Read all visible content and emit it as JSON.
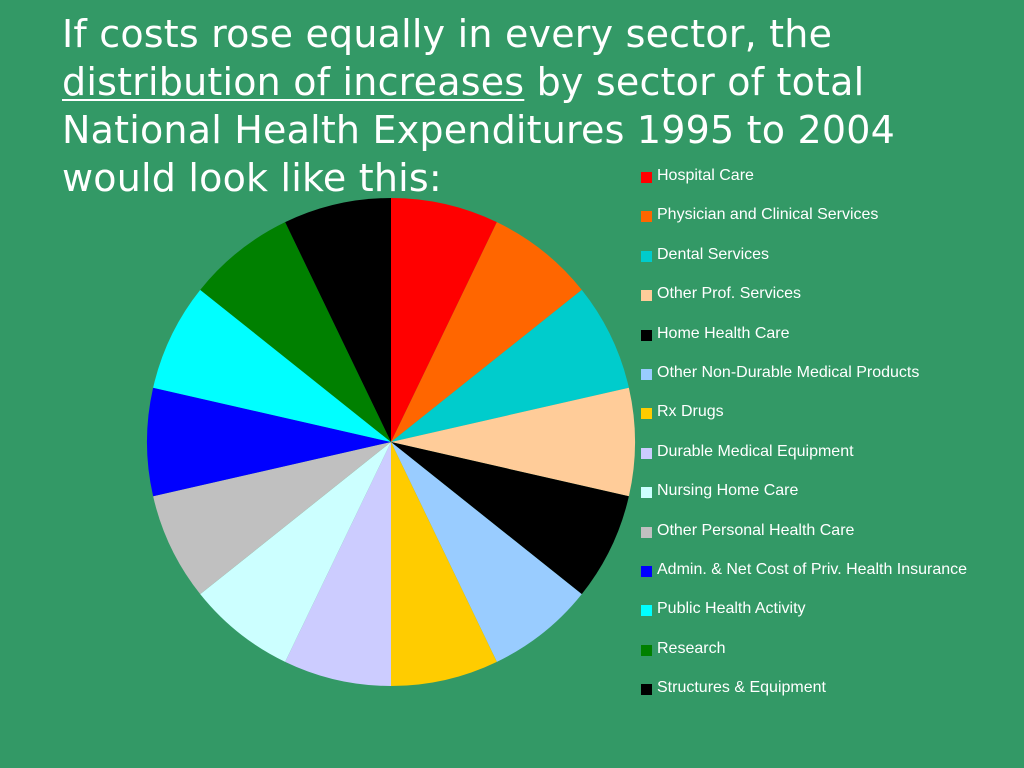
{
  "slide": {
    "title_part1": "If costs rose equally in every sector, the",
    "title_underlined": "distribution of increases",
    "title_part2": "by sector of total National Health Expenditures 1995 to 2004 would look like this:"
  },
  "chart_data": {
    "type": "pie",
    "title": "",
    "legend_position": "right",
    "start_angle_deg": 0,
    "direction": "clockwise",
    "categories": [
      "Hospital Care",
      "Physician and Clinical Services",
      "Dental Services",
      "Other Prof. Services",
      "Home Health Care",
      "Other Non-Durable Medical Products",
      "Rx Drugs",
      "Durable Medical Equipment",
      "Nursing Home Care",
      "Other Personal Health Care",
      "Admin. & Net Cost of Priv. Health Insurance",
      "Public Health Activity",
      "Research",
      "Structures & Equipment"
    ],
    "values": [
      1,
      1,
      1,
      1,
      1,
      1,
      1,
      1,
      1,
      1,
      1,
      1,
      1,
      1
    ],
    "colors": [
      "#ff0000",
      "#ff6600",
      "#00cccc",
      "#ffcc99",
      "#000000",
      "#99ccff",
      "#ffcc00",
      "#ccccff",
      "#ccffff",
      "#c0c0c0",
      "#0000ff",
      "#00ffff",
      "#008000",
      "#000000"
    ]
  }
}
